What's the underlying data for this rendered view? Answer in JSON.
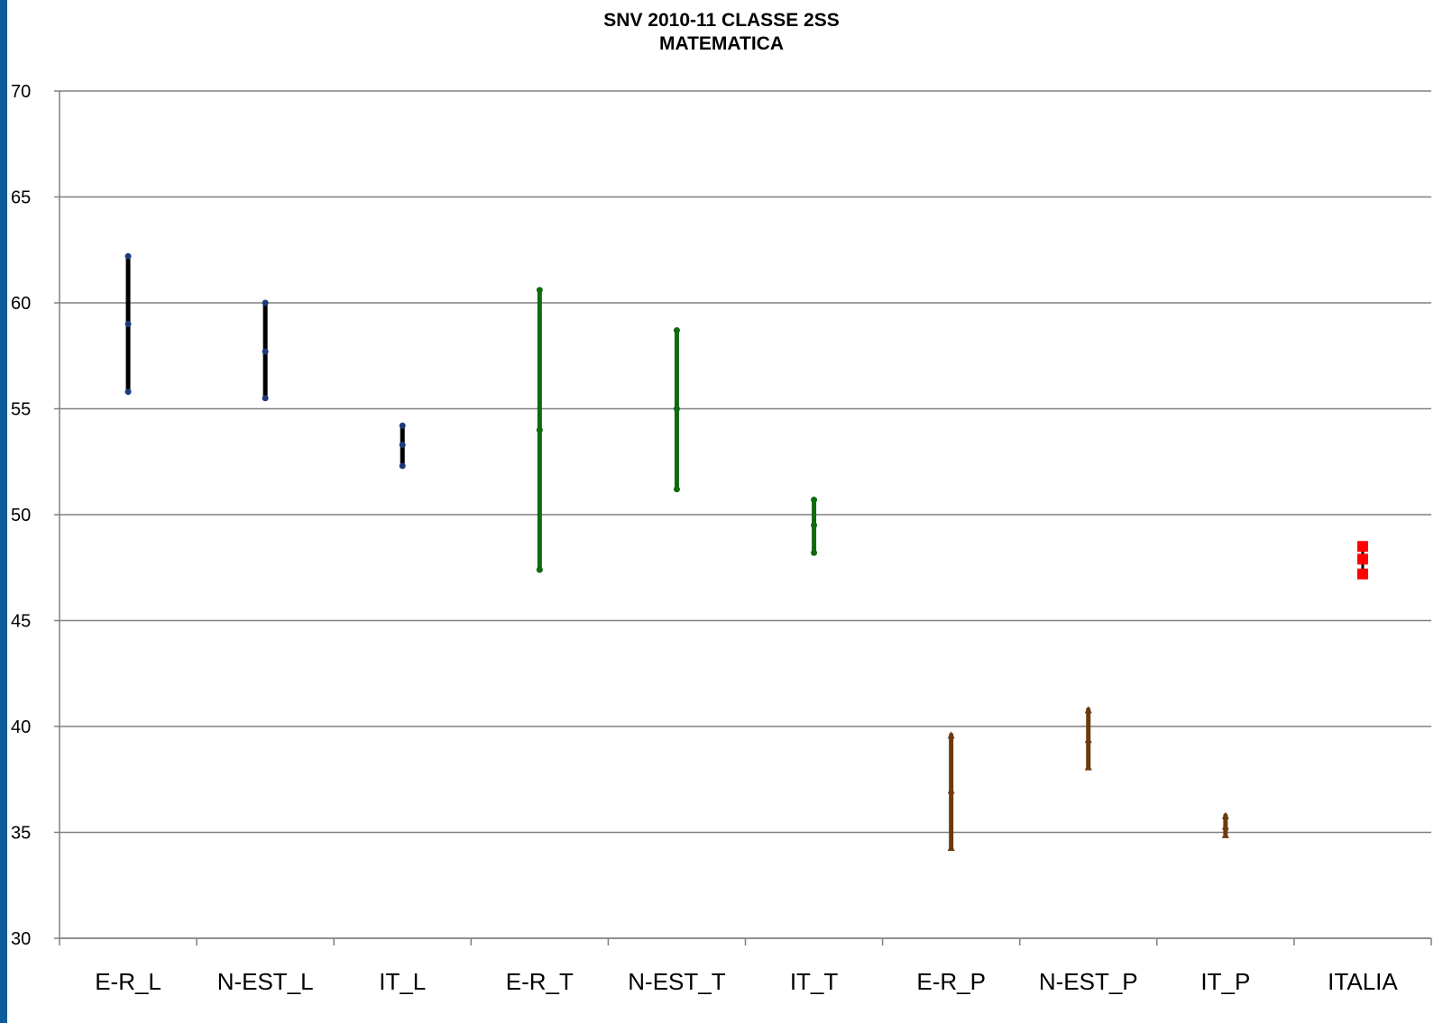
{
  "colors": {
    "left_bar": "#0b5c9b",
    "grid": "#808080",
    "axis": "#808080",
    "text": "#000000"
  },
  "chart_data": {
    "type": "stock",
    "title": "SNV 2010-11 CLASSE 2SS",
    "subtitle": "MATEMATICA",
    "xlabel": "",
    "ylabel": "",
    "ylim": [
      30,
      70
    ],
    "yticks": [
      "30",
      "35",
      "40",
      "45",
      "50",
      "55",
      "60",
      "65",
      "70"
    ],
    "grid": true,
    "legend": "none",
    "categories": [
      "E-R_L",
      "N-EST_L",
      "IT_L",
      "E-R_T",
      "N-EST_T",
      "IT_T",
      "E-R_P",
      "N-EST_P",
      "IT_P",
      "ITALIA"
    ],
    "series": [
      {
        "color": "#000000",
        "marker_color": "#1f3a7a",
        "marker": "dot",
        "lows": [
          55.8,
          55.5,
          52.3,
          null,
          null,
          null,
          null,
          null,
          null,
          null
        ],
        "mids": [
          59.0,
          57.7,
          53.3,
          null,
          null,
          null,
          null,
          null,
          null,
          null
        ],
        "highs": [
          62.2,
          60.0,
          54.2,
          null,
          null,
          null,
          null,
          null,
          null,
          null
        ]
      },
      {
        "color": "#0e6b0e",
        "marker_color": "#0e6b0e",
        "marker": "dot",
        "lows": [
          null,
          null,
          null,
          47.4,
          51.2,
          48.2,
          null,
          null,
          null,
          null
        ],
        "mids": [
          null,
          null,
          null,
          54.0,
          55.0,
          49.5,
          null,
          null,
          null,
          null
        ],
        "highs": [
          null,
          null,
          null,
          60.6,
          58.7,
          50.7,
          null,
          null,
          null,
          null
        ]
      },
      {
        "color": "#6b3a0e",
        "marker_color": "#6b3a0e",
        "marker": "triangle",
        "lows": [
          null,
          null,
          null,
          null,
          null,
          null,
          34.3,
          38.1,
          34.9,
          null
        ],
        "mids": [
          null,
          null,
          null,
          null,
          null,
          null,
          37.0,
          39.4,
          35.3,
          null
        ],
        "highs": [
          null,
          null,
          null,
          null,
          null,
          null,
          39.6,
          40.8,
          35.8,
          null
        ]
      },
      {
        "color": "#000000",
        "marker_color": "#ff0000",
        "marker": "square",
        "lows": [
          null,
          null,
          null,
          null,
          null,
          null,
          null,
          null,
          null,
          47.2
        ],
        "mids": [
          null,
          null,
          null,
          null,
          null,
          null,
          null,
          null,
          null,
          47.9
        ],
        "highs": [
          null,
          null,
          null,
          null,
          null,
          null,
          null,
          null,
          null,
          48.5
        ]
      }
    ]
  }
}
